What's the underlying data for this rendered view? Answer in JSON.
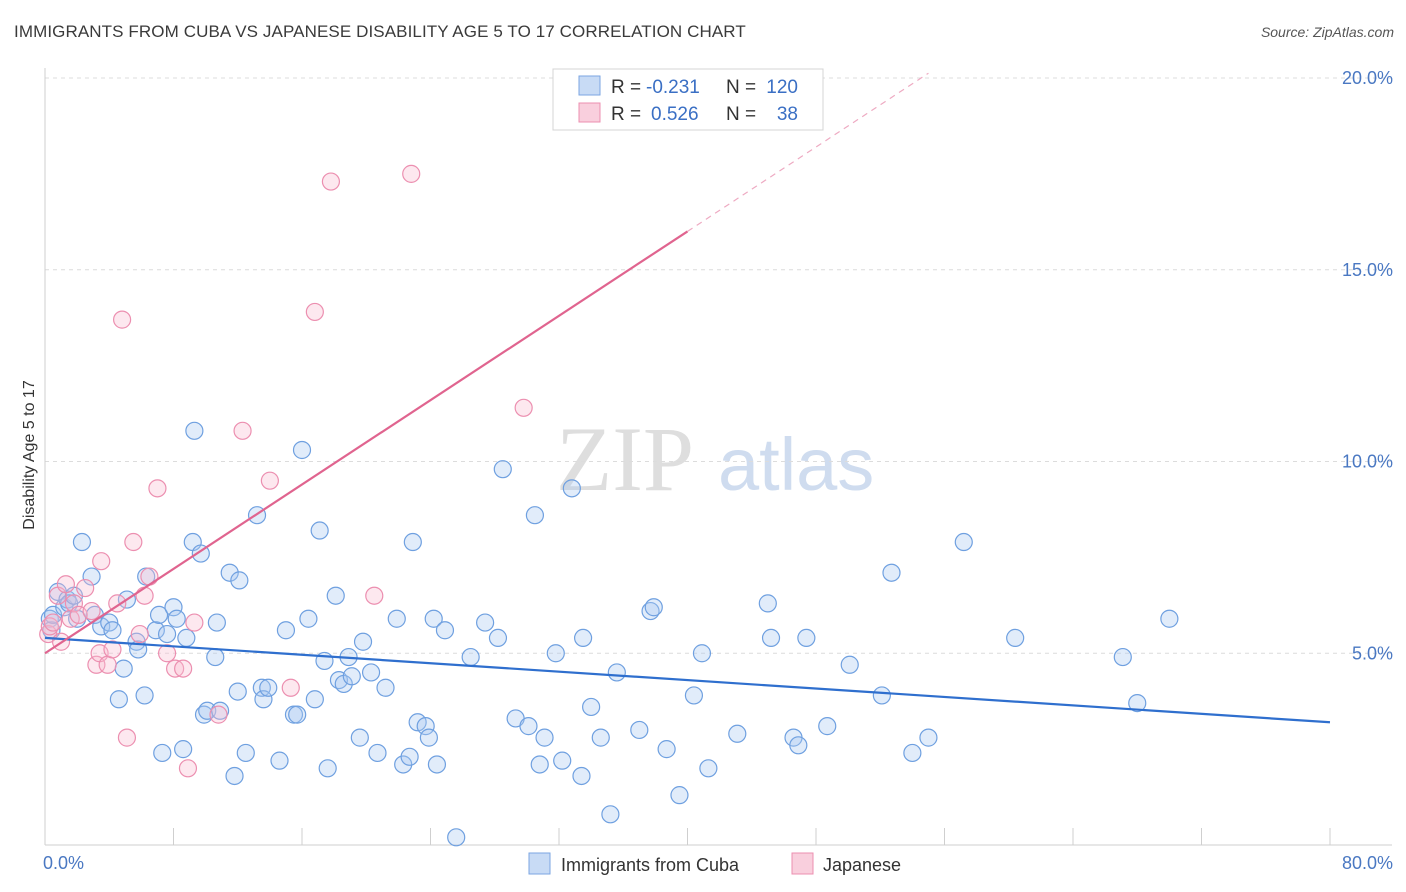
{
  "header": {
    "title": "IMMIGRANTS FROM CUBA VS JAPANESE DISABILITY AGE 5 TO 17 CORRELATION CHART",
    "source": "Source: ZipAtlas.com"
  },
  "watermark": {
    "zip": "ZIP",
    "atlas": "atlas"
  },
  "legend_box": {
    "rows": [
      {
        "r_label": "R =",
        "r_value": "-0.231",
        "n_label": "N =",
        "n_value": "120",
        "color": "#6fa0e0"
      },
      {
        "r_label": "R =",
        "r_value": "0.526",
        "n_label": "N =",
        "n_value": "38",
        "color": "#ec8fb0"
      }
    ]
  },
  "chart_data": {
    "type": "scatter",
    "ylabel": "Disability Age 5 to 17",
    "xlim": [
      0,
      80
    ],
    "ylim": [
      0,
      20
    ],
    "x_tick_labels": [
      "0.0%",
      "80.0%"
    ],
    "y_ticks": [
      5,
      10,
      15,
      20
    ],
    "y_tick_labels": [
      "5.0%",
      "10.0%",
      "15.0%",
      "20.0%"
    ],
    "grid": "horizontal dashed",
    "legend_position": "bottom-center",
    "series": [
      {
        "name": "Immigrants from Cuba",
        "color": "#6fa0e0",
        "trend": {
          "x0": 0,
          "y0": 5.4,
          "x1": 80,
          "y1": 3.2,
          "dashed_from": null
        },
        "points": [
          [
            0.3,
            5.9
          ],
          [
            0.4,
            5.6
          ],
          [
            0.5,
            6.0
          ],
          [
            0.8,
            6.6
          ],
          [
            1.2,
            6.2
          ],
          [
            1.4,
            6.4
          ],
          [
            1.5,
            6.3
          ],
          [
            1.8,
            6.5
          ],
          [
            2.0,
            5.9
          ],
          [
            2.3,
            7.9
          ],
          [
            2.9,
            7.0
          ],
          [
            3.1,
            6.0
          ],
          [
            3.5,
            5.7
          ],
          [
            4.0,
            5.8
          ],
          [
            4.2,
            5.6
          ],
          [
            4.9,
            4.6
          ],
          [
            4.6,
            3.8
          ],
          [
            5.1,
            6.4
          ],
          [
            5.7,
            5.3
          ],
          [
            5.8,
            5.1
          ],
          [
            6.2,
            3.9
          ],
          [
            6.3,
            7.0
          ],
          [
            6.9,
            5.6
          ],
          [
            7.1,
            6.0
          ],
          [
            7.3,
            2.4
          ],
          [
            7.6,
            5.5
          ],
          [
            8.0,
            6.2
          ],
          [
            8.2,
            5.9
          ],
          [
            8.6,
            2.5
          ],
          [
            8.8,
            5.4
          ],
          [
            9.2,
            7.9
          ],
          [
            9.3,
            10.8
          ],
          [
            9.7,
            7.6
          ],
          [
            9.9,
            3.4
          ],
          [
            10.1,
            3.5
          ],
          [
            10.6,
            4.9
          ],
          [
            10.7,
            5.8
          ],
          [
            10.9,
            3.5
          ],
          [
            11.5,
            7.1
          ],
          [
            11.8,
            1.8
          ],
          [
            12.0,
            4.0
          ],
          [
            12.1,
            6.9
          ],
          [
            12.5,
            2.4
          ],
          [
            13.2,
            8.6
          ],
          [
            13.5,
            4.1
          ],
          [
            13.6,
            3.8
          ],
          [
            13.9,
            4.1
          ],
          [
            14.6,
            2.2
          ],
          [
            15.0,
            5.6
          ],
          [
            15.5,
            3.4
          ],
          [
            15.7,
            3.4
          ],
          [
            16.0,
            10.3
          ],
          [
            16.4,
            5.9
          ],
          [
            16.8,
            3.8
          ],
          [
            17.1,
            8.2
          ],
          [
            17.4,
            4.8
          ],
          [
            17.6,
            2.0
          ],
          [
            18.1,
            6.5
          ],
          [
            18.3,
            4.3
          ],
          [
            18.6,
            4.2
          ],
          [
            18.9,
            4.9
          ],
          [
            19.1,
            4.4
          ],
          [
            19.6,
            2.8
          ],
          [
            19.8,
            5.3
          ],
          [
            20.3,
            4.5
          ],
          [
            20.7,
            2.4
          ],
          [
            21.2,
            4.1
          ],
          [
            21.9,
            5.9
          ],
          [
            22.3,
            2.1
          ],
          [
            22.7,
            2.3
          ],
          [
            22.9,
            7.9
          ],
          [
            23.2,
            3.2
          ],
          [
            23.7,
            3.1
          ],
          [
            23.9,
            2.8
          ],
          [
            24.2,
            5.9
          ],
          [
            24.4,
            2.1
          ],
          [
            24.9,
            5.6
          ],
          [
            25.6,
            0.2
          ],
          [
            26.5,
            4.9
          ],
          [
            27.4,
            5.8
          ],
          [
            28.2,
            5.4
          ],
          [
            28.5,
            9.8
          ],
          [
            29.3,
            3.3
          ],
          [
            30.1,
            3.1
          ],
          [
            30.5,
            8.6
          ],
          [
            30.8,
            2.1
          ],
          [
            31.1,
            2.8
          ],
          [
            31.8,
            5.0
          ],
          [
            32.2,
            2.2
          ],
          [
            32.8,
            9.3
          ],
          [
            33.4,
            1.8
          ],
          [
            33.5,
            5.4
          ],
          [
            34.0,
            3.6
          ],
          [
            34.6,
            2.8
          ],
          [
            35.2,
            0.8
          ],
          [
            35.6,
            4.5
          ],
          [
            37.0,
            3.0
          ],
          [
            37.7,
            6.1
          ],
          [
            37.9,
            6.2
          ],
          [
            38.7,
            2.5
          ],
          [
            39.5,
            1.3
          ],
          [
            40.4,
            3.9
          ],
          [
            40.9,
            5.0
          ],
          [
            41.3,
            2.0
          ],
          [
            43.1,
            2.9
          ],
          [
            45.0,
            6.3
          ],
          [
            45.2,
            5.4
          ],
          [
            46.6,
            2.8
          ],
          [
            46.9,
            2.6
          ],
          [
            47.4,
            5.4
          ],
          [
            48.7,
            3.1
          ],
          [
            50.1,
            4.7
          ],
          [
            52.1,
            3.9
          ],
          [
            52.7,
            7.1
          ],
          [
            54.0,
            2.4
          ],
          [
            55.0,
            2.8
          ],
          [
            57.2,
            7.9
          ],
          [
            60.4,
            5.4
          ],
          [
            67.1,
            4.9
          ],
          [
            68.0,
            3.7
          ],
          [
            70.0,
            5.9
          ]
        ]
      },
      {
        "name": "Japanese",
        "color": "#ec8fb0",
        "trend": {
          "x0": 0,
          "y0": 5.0,
          "x1": 40,
          "y1": 16.0,
          "dashed_to_x": 55
        },
        "points": [
          [
            0.2,
            5.5
          ],
          [
            0.3,
            5.7
          ],
          [
            0.5,
            5.8
          ],
          [
            0.8,
            6.5
          ],
          [
            1.0,
            5.3
          ],
          [
            1.3,
            6.8
          ],
          [
            1.6,
            5.9
          ],
          [
            1.8,
            6.3
          ],
          [
            2.1,
            6.0
          ],
          [
            2.5,
            6.7
          ],
          [
            2.9,
            6.1
          ],
          [
            3.2,
            4.7
          ],
          [
            3.4,
            5.0
          ],
          [
            3.5,
            7.4
          ],
          [
            3.9,
            4.7
          ],
          [
            4.2,
            5.1
          ],
          [
            4.5,
            6.3
          ],
          [
            4.8,
            13.7
          ],
          [
            5.1,
            2.8
          ],
          [
            5.5,
            7.9
          ],
          [
            5.9,
            5.5
          ],
          [
            6.2,
            6.5
          ],
          [
            6.5,
            7.0
          ],
          [
            7.0,
            9.3
          ],
          [
            7.6,
            5.0
          ],
          [
            8.1,
            4.6
          ],
          [
            8.6,
            4.6
          ],
          [
            8.9,
            2.0
          ],
          [
            9.3,
            5.8
          ],
          [
            10.8,
            3.4
          ],
          [
            12.3,
            10.8
          ],
          [
            14.0,
            9.5
          ],
          [
            15.3,
            4.1
          ],
          [
            16.8,
            13.9
          ],
          [
            17.8,
            17.3
          ],
          [
            20.5,
            6.5
          ],
          [
            22.8,
            17.5
          ],
          [
            29.8,
            11.4
          ]
        ]
      }
    ]
  }
}
